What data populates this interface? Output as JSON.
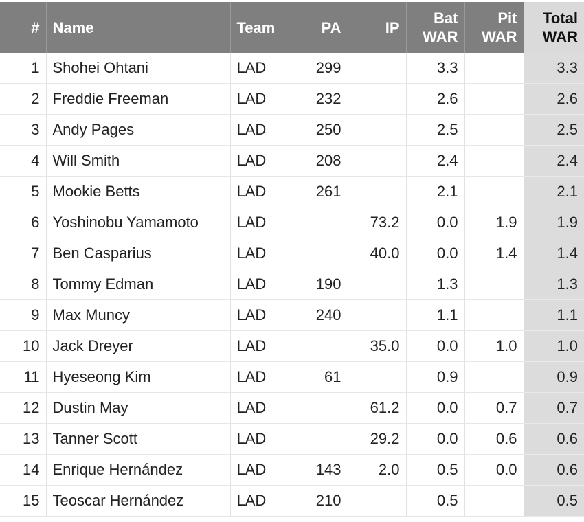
{
  "table": {
    "headers": {
      "rank": "#",
      "name": "Name",
      "team": "Team",
      "pa": "PA",
      "ip": "IP",
      "bat_war_1": "Bat",
      "bat_war_2": "WAR",
      "pit_war_1": "Pit",
      "pit_war_2": "WAR",
      "total_war_1": "Total",
      "total_war_2": "WAR"
    },
    "rows": [
      {
        "rank": "1",
        "name": "Shohei Ohtani",
        "team": "LAD",
        "pa": "299",
        "ip": "",
        "bat": "3.3",
        "pit": "",
        "total": "3.3"
      },
      {
        "rank": "2",
        "name": "Freddie Freeman",
        "team": "LAD",
        "pa": "232",
        "ip": "",
        "bat": "2.6",
        "pit": "",
        "total": "2.6"
      },
      {
        "rank": "3",
        "name": "Andy Pages",
        "team": "LAD",
        "pa": "250",
        "ip": "",
        "bat": "2.5",
        "pit": "",
        "total": "2.5"
      },
      {
        "rank": "4",
        "name": "Will Smith",
        "team": "LAD",
        "pa": "208",
        "ip": "",
        "bat": "2.4",
        "pit": "",
        "total": "2.4"
      },
      {
        "rank": "5",
        "name": "Mookie Betts",
        "team": "LAD",
        "pa": "261",
        "ip": "",
        "bat": "2.1",
        "pit": "",
        "total": "2.1"
      },
      {
        "rank": "6",
        "name": "Yoshinobu Yamamoto",
        "team": "LAD",
        "pa": "",
        "ip": "73.2",
        "bat": "0.0",
        "pit": "1.9",
        "total": "1.9"
      },
      {
        "rank": "7",
        "name": "Ben Casparius",
        "team": "LAD",
        "pa": "",
        "ip": "40.0",
        "bat": "0.0",
        "pit": "1.4",
        "total": "1.4"
      },
      {
        "rank": "8",
        "name": "Tommy Edman",
        "team": "LAD",
        "pa": "190",
        "ip": "",
        "bat": "1.3",
        "pit": "",
        "total": "1.3"
      },
      {
        "rank": "9",
        "name": "Max Muncy",
        "team": "LAD",
        "pa": "240",
        "ip": "",
        "bat": "1.1",
        "pit": "",
        "total": "1.1"
      },
      {
        "rank": "10",
        "name": "Jack Dreyer",
        "team": "LAD",
        "pa": "",
        "ip": "35.0",
        "bat": "0.0",
        "pit": "1.0",
        "total": "1.0"
      },
      {
        "rank": "11",
        "name": "Hyeseong Kim",
        "team": "LAD",
        "pa": "61",
        "ip": "",
        "bat": "0.9",
        "pit": "",
        "total": "0.9"
      },
      {
        "rank": "12",
        "name": "Dustin May",
        "team": "LAD",
        "pa": "",
        "ip": "61.2",
        "bat": "0.0",
        "pit": "0.7",
        "total": "0.7"
      },
      {
        "rank": "13",
        "name": "Tanner Scott",
        "team": "LAD",
        "pa": "",
        "ip": "29.2",
        "bat": "0.0",
        "pit": "0.6",
        "total": "0.6"
      },
      {
        "rank": "14",
        "name": "Enrique Hernández",
        "team": "LAD",
        "pa": "143",
        "ip": "2.0",
        "bat": "0.5",
        "pit": "0.0",
        "total": "0.6"
      },
      {
        "rank": "15",
        "name": "Teoscar Hernández",
        "team": "LAD",
        "pa": "210",
        "ip": "",
        "bat": "0.5",
        "pit": "",
        "total": "0.5"
      }
    ]
  },
  "colors": {
    "header_bg": "#7f7f7f",
    "header_text": "#ffffff",
    "total_col_bg": "#dcdcdc",
    "text": "#222222"
  }
}
